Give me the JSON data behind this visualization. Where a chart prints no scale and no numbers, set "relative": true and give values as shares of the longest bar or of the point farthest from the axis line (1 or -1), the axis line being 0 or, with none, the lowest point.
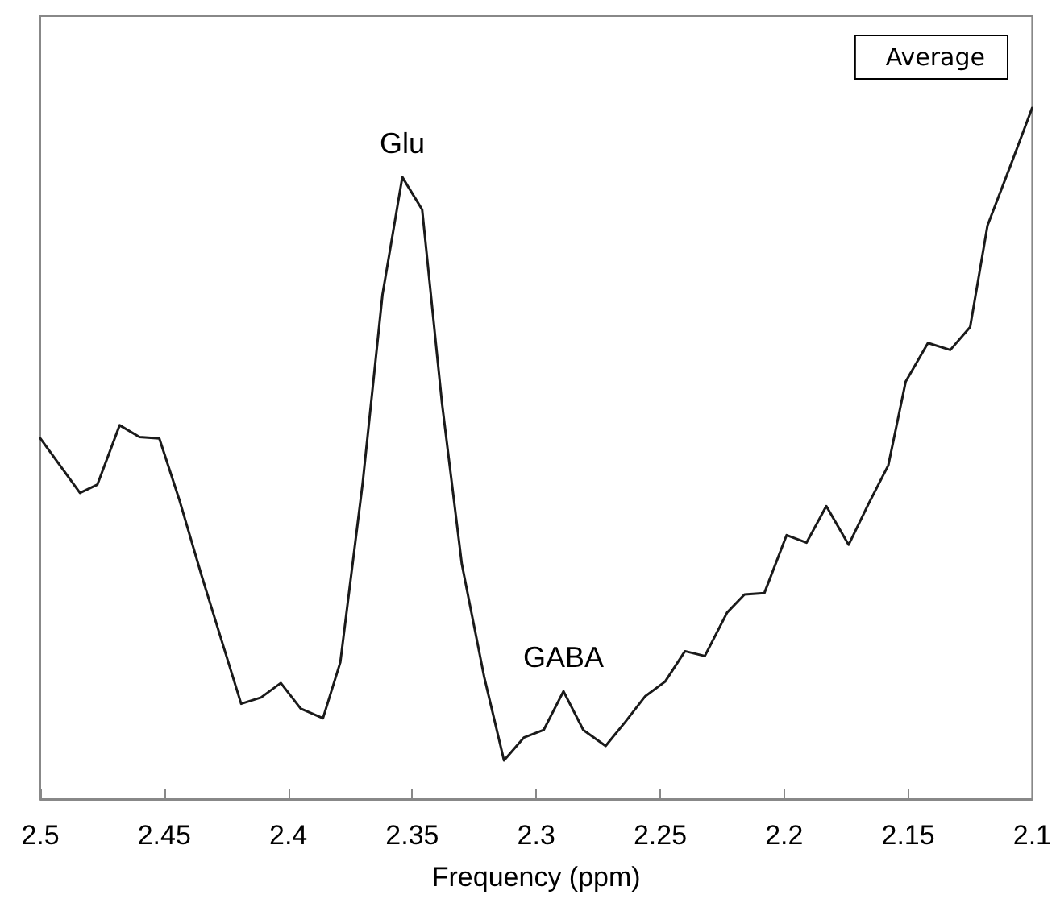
{
  "chart_data": {
    "type": "line",
    "xlabel": "Frequency (ppm)",
    "relative": true,
    "xlim": [
      2.5,
      2.1
    ],
    "xticks": [
      2.5,
      2.45,
      2.4,
      2.35,
      2.3,
      2.25,
      2.2,
      2.15,
      2.1
    ],
    "x": [
      2.5,
      2.484,
      2.477,
      2.468,
      2.46,
      2.452,
      2.444,
      2.435,
      2.427,
      2.419,
      2.411,
      2.403,
      2.395,
      2.386,
      2.379,
      2.37,
      2.362,
      2.354,
      2.346,
      2.338,
      2.33,
      2.321,
      2.313,
      2.305,
      2.297,
      2.289,
      2.281,
      2.272,
      2.264,
      2.256,
      2.248,
      2.24,
      2.232,
      2.223,
      2.216,
      2.208,
      2.199,
      2.191,
      2.183,
      2.174,
      2.166,
      2.158,
      2.151,
      2.142,
      2.133,
      2.125,
      2.118,
      2.109,
      2.1
    ],
    "series": [
      {
        "name": "Average",
        "color": "#1a1a1a",
        "values": [
          0.522,
          0.443,
          0.455,
          0.541,
          0.524,
          0.522,
          0.434,
          0.324,
          0.231,
          0.138,
          0.147,
          0.168,
          0.131,
          0.117,
          0.198,
          0.457,
          0.73,
          0.9,
          0.853,
          0.573,
          0.34,
          0.177,
          0.056,
          0.089,
          0.1,
          0.156,
          0.1,
          0.077,
          0.112,
          0.149,
          0.17,
          0.214,
          0.207,
          0.27,
          0.296,
          0.298,
          0.382,
          0.371,
          0.424,
          0.368,
          0.427,
          0.483,
          0.604,
          0.66,
          0.65,
          0.683,
          0.83,
          0.914,
          1
        ]
      }
    ],
    "annotations": [
      {
        "text": "Glu",
        "x": 2.354,
        "y": 0.9
      },
      {
        "text": "GABA",
        "x": 2.289,
        "y": 0.156
      }
    ],
    "legend": "top right",
    "marker": "none",
    "line_style": "solid",
    "grid": false
  }
}
